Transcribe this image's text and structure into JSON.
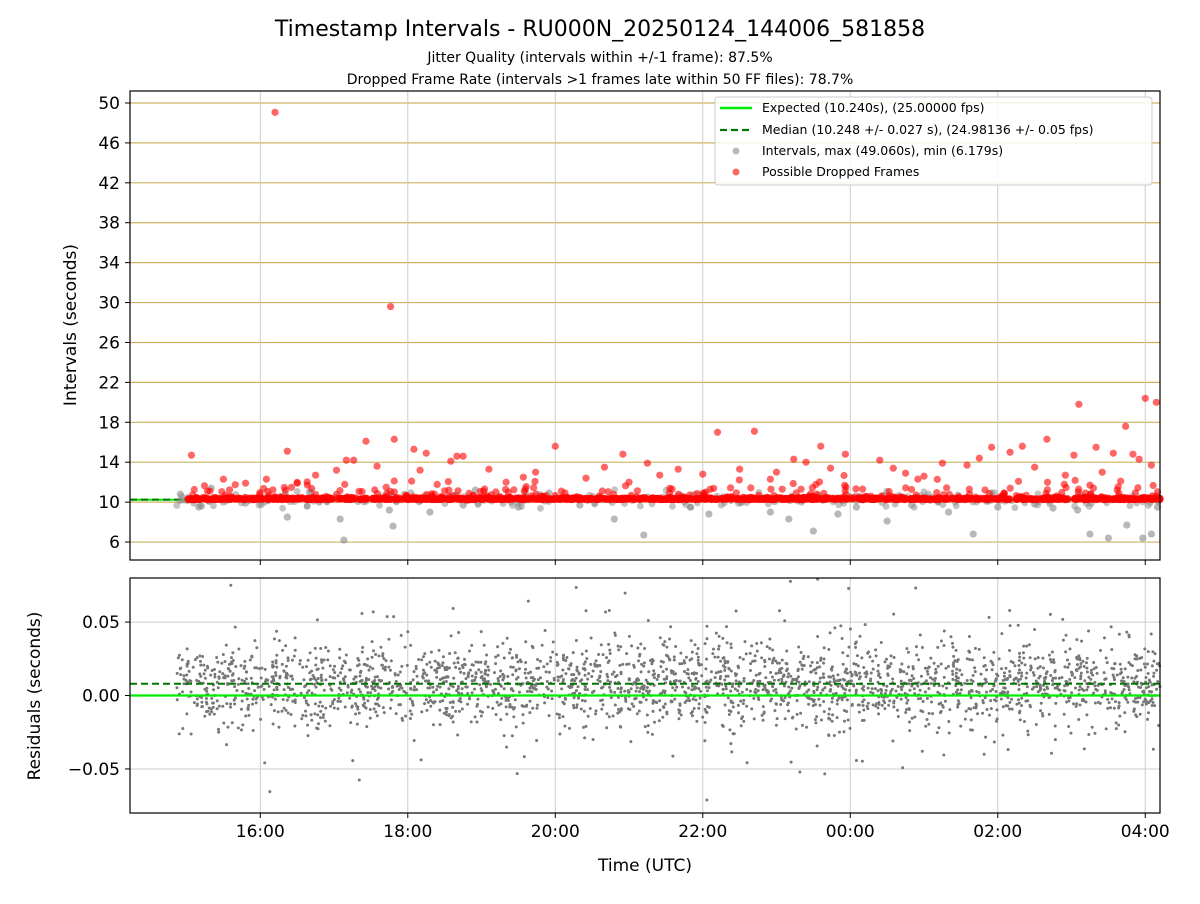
{
  "figure": {
    "title": "Timestamp Intervals - RU000N_20250124_144006_581858",
    "subtitle_1": "Jitter Quality (intervals within +/-1 frame): 87.5%",
    "subtitle_2": "Dropped Frame Rate (intervals >1 frames late within 50 FF files): 78.7%",
    "xlabel": "Time (UTC)"
  },
  "colors": {
    "expected": "#00ee00",
    "median": "#007700",
    "intervals": "#888888",
    "dropped": "#ff0000",
    "hgrid_top": "#cdb060",
    "grid": "#cccccc",
    "residuals": "#777777"
  },
  "chart_data": [
    {
      "type": "scatter",
      "ylabel": "Intervals (seconds)",
      "ylim": [
        4.2,
        51.2
      ],
      "yticks": [
        6,
        10,
        14,
        18,
        22,
        26,
        30,
        34,
        38,
        42,
        46,
        50
      ],
      "ytick_labels": [
        "6",
        "10",
        "14",
        "18",
        "22",
        "26",
        "30",
        "34",
        "38",
        "42",
        "46",
        "50"
      ],
      "xlim": [
        "14:14",
        "04:12"
      ],
      "xticks": [
        "16:00",
        "18:00",
        "20:00",
        "22:00",
        "00:00",
        "02:00",
        "04:00"
      ],
      "expected": 10.24,
      "median": 10.248,
      "data_start": "14:52",
      "data_end": "04:12",
      "legend": {
        "placement": "upper-right",
        "entries": [
          "Expected (10.240s), (25.00000 fps)",
          "Median (10.248 +/- 0.027 s), (24.98136 +/- 0.05 fps)",
          "Intervals, max (49.060s), min (6.179s)",
          "Possible Dropped Frames"
        ]
      },
      "series": [
        {
          "name": "Possible Dropped Frames",
          "points": [
            [
              "16:12",
              49.06
            ],
            [
              "17:46",
              29.6
            ],
            [
              "17:49",
              16.3
            ],
            [
              "17:26",
              16.1
            ],
            [
              "20:00",
              15.6
            ],
            [
              "22:12",
              17.0
            ],
            [
              "22:42",
              17.1
            ],
            [
              "23:36",
              15.6
            ],
            [
              "18:05",
              15.3
            ],
            [
              "18:15",
              14.9
            ],
            [
              "18:40",
              14.6
            ],
            [
              "18:45",
              14.6
            ],
            [
              "15:04",
              14.7
            ],
            [
              "16:22",
              15.1
            ],
            [
              "17:02",
              13.2
            ],
            [
              "17:10",
              14.2
            ],
            [
              "17:16",
              14.2
            ],
            [
              "17:35",
              13.6
            ],
            [
              "18:10",
              13.2
            ],
            [
              "18:35",
              14.1
            ],
            [
              "19:06",
              13.3
            ],
            [
              "19:34",
              12.5
            ],
            [
              "19:44",
              13.0
            ],
            [
              "20:25",
              12.4
            ],
            [
              "20:40",
              13.5
            ],
            [
              "20:55",
              14.8
            ],
            [
              "21:00",
              12.0
            ],
            [
              "21:15",
              13.9
            ],
            [
              "21:25",
              12.7
            ],
            [
              "21:40",
              13.3
            ],
            [
              "22:00",
              12.8
            ],
            [
              "22:30",
              13.3
            ],
            [
              "23:00",
              13.0
            ],
            [
              "23:14",
              14.3
            ],
            [
              "23:24",
              14.0
            ],
            [
              "23:44",
              13.4
            ],
            [
              "23:56",
              14.8
            ],
            [
              "00:24",
              14.2
            ],
            [
              "00:35",
              13.4
            ],
            [
              "00:45",
              12.9
            ],
            [
              "01:00",
              12.6
            ],
            [
              "01:15",
              13.9
            ],
            [
              "01:35",
              13.7
            ],
            [
              "01:45",
              14.4
            ],
            [
              "01:55",
              15.5
            ],
            [
              "02:10",
              15.0
            ],
            [
              "02:20",
              15.6
            ],
            [
              "02:30",
              13.5
            ],
            [
              "02:40",
              16.3
            ],
            [
              "02:55",
              12.7
            ],
            [
              "03:02",
              14.7
            ],
            [
              "03:06",
              19.8
            ],
            [
              "03:20",
              15.5
            ],
            [
              "03:25",
              13.0
            ],
            [
              "03:34",
              14.9
            ],
            [
              "03:44",
              17.6
            ],
            [
              "03:50",
              14.8
            ],
            [
              "03:55",
              14.3
            ],
            [
              "04:00",
              20.4
            ],
            [
              "04:09",
              20.0
            ],
            [
              "04:05",
              13.7
            ],
            [
              "15:30",
              12.3
            ],
            [
              "15:48",
              11.9
            ],
            [
              "16:05",
              12.3
            ],
            [
              "16:30",
              11.9
            ],
            [
              "16:45",
              12.7
            ],
            [
              "19:20",
              12.0
            ],
            [
              "20:05",
              11.1
            ],
            [
              "21:35",
              11.3
            ],
            [
              "22:55",
              12.3
            ],
            [
              "00:10",
              11.3
            ],
            [
              "00:55",
              12.3
            ],
            [
              "02:05",
              10.9
            ],
            [
              "03:15",
              11.7
            ],
            [
              "03:40",
              12.1
            ]
          ]
        },
        {
          "name": "Intervals, max (49.060s), min (6.179s)",
          "points": [
            [
              "17:08",
              6.2
            ],
            [
              "17:05",
              8.3
            ],
            [
              "16:22",
              8.5
            ],
            [
              "17:48",
              7.6
            ],
            [
              "17:45",
              9.2
            ],
            [
              "15:10",
              9.5
            ],
            [
              "15:48",
              9.9
            ],
            [
              "16:48",
              10.0
            ],
            [
              "18:18",
              9.0
            ],
            [
              "18:45",
              9.7
            ],
            [
              "19:30",
              9.5
            ],
            [
              "20:20",
              9.7
            ],
            [
              "20:48",
              8.3
            ],
            [
              "21:12",
              6.7
            ],
            [
              "21:50",
              9.5
            ],
            [
              "22:05",
              8.8
            ],
            [
              "22:55",
              9.0
            ],
            [
              "23:10",
              8.3
            ],
            [
              "23:30",
              7.1
            ],
            [
              "23:50",
              8.8
            ],
            [
              "00:05",
              9.5
            ],
            [
              "00:30",
              8.1
            ],
            [
              "00:50",
              9.7
            ],
            [
              "01:20",
              9.0
            ],
            [
              "01:40",
              6.8
            ],
            [
              "02:00",
              9.5
            ],
            [
              "02:30",
              9.8
            ],
            [
              "02:45",
              9.4
            ],
            [
              "03:05",
              9.2
            ],
            [
              "03:15",
              6.8
            ],
            [
              "03:30",
              6.4
            ],
            [
              "03:45",
              7.7
            ],
            [
              "03:58",
              6.4
            ],
            [
              "04:05",
              6.8
            ],
            [
              "04:10",
              9.5
            ],
            [
              "14:55",
              10.8
            ],
            [
              "15:20",
              11.4
            ],
            [
              "16:40",
              11.0
            ],
            [
              "18:55",
              11.2
            ],
            [
              "19:55",
              10.9
            ]
          ]
        }
      ]
    },
    {
      "type": "scatter",
      "ylabel": "Residuals (seconds)",
      "ylim": [
        -0.08,
        0.08
      ],
      "yticks": [
        -0.05,
        0.0,
        0.05
      ],
      "ytick_labels": [
        "−0.05",
        "0.00",
        "0.05"
      ],
      "xlim": [
        "14:14",
        "04:12"
      ],
      "xticks": [
        "16:00",
        "18:00",
        "20:00",
        "22:00",
        "00:00",
        "02:00",
        "04:00"
      ],
      "xtick_labels": [
        "16:00",
        "18:00",
        "20:00",
        "22:00",
        "00:00",
        "02:00",
        "04:00"
      ],
      "expected": 0.0,
      "median": 0.008,
      "data_start": "14:52",
      "data_end": "04:12",
      "spread_sd": 0.014
    }
  ]
}
